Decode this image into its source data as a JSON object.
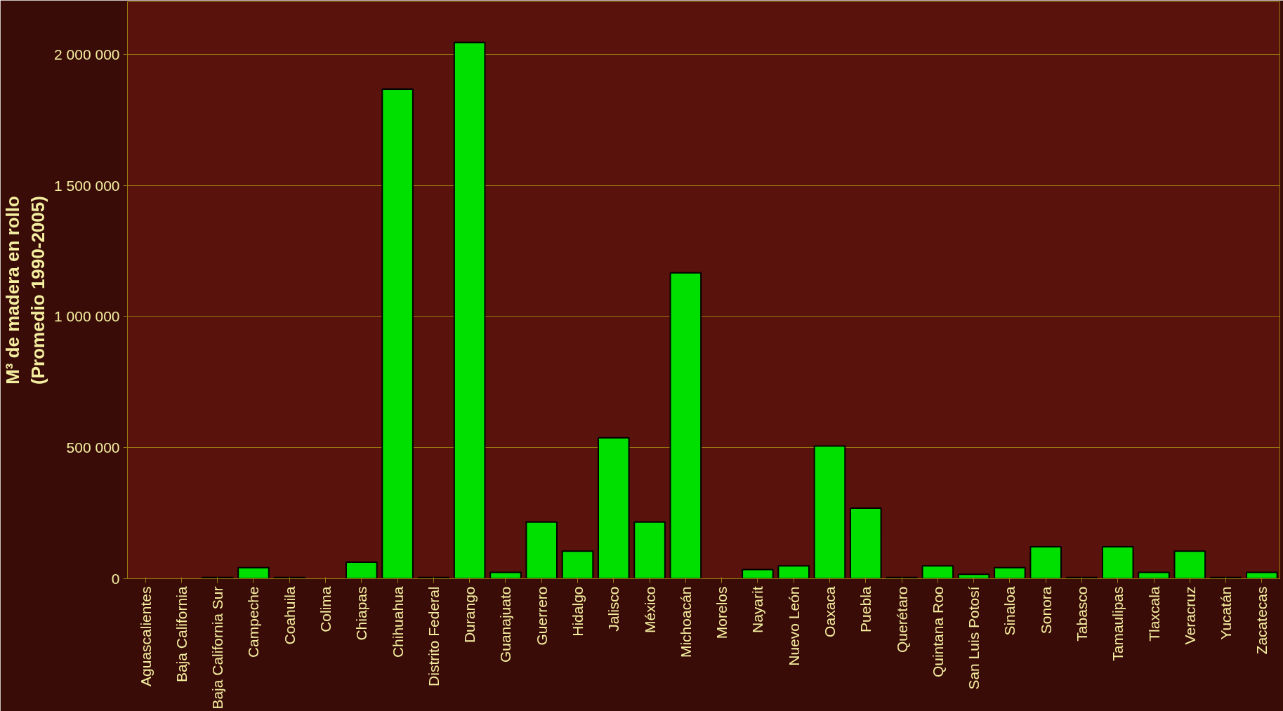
{
  "chart_data": {
    "type": "bar",
    "ylabel": "M³ de madera en rollo\n(Promedio 1990-2005)",
    "categories": [
      "Aguascalientes",
      "Baja California",
      "Baja California Sur",
      "Campeche",
      "Coahuila",
      "Colima",
      "Chiapas",
      "Chihuahua",
      "Distrito Federal",
      "Durango",
      "Guanajuato",
      "Guerrero",
      "Hidalgo",
      "Jalisco",
      "México",
      "Michoacán",
      "Morelos",
      "Nayarit",
      "Nuevo León",
      "Oaxaca",
      "Puebla",
      "Querétaro",
      "Quintana Roo",
      "San Luis Potosí",
      "Sinaloa",
      "Sonora",
      "Tabasco",
      "Tamaulipas",
      "Tlaxcala",
      "Veracruz",
      "Yucatán",
      "Zacatecas"
    ],
    "values": [
      0,
      0,
      5000,
      42000,
      5000,
      0,
      63000,
      1867000,
      5000,
      2045000,
      24000,
      216000,
      105000,
      537000,
      216000,
      1166000,
      0,
      35000,
      49000,
      506000,
      269000,
      5000,
      49000,
      17000,
      42000,
      122000,
      5000,
      122000,
      24000,
      105000,
      5000,
      24000
    ],
    "color": "#00e000",
    "ylim": [
      0,
      2200000
    ],
    "yticks": [
      {
        "value": 0,
        "label": "0"
      },
      {
        "value": 500000,
        "label": "500 000"
      },
      {
        "value": 1000000,
        "label": "1 000 000"
      },
      {
        "value": 1500000,
        "label": "1 500 000"
      },
      {
        "value": 2000000,
        "label": "2 000 000"
      }
    ],
    "grid": "y"
  }
}
